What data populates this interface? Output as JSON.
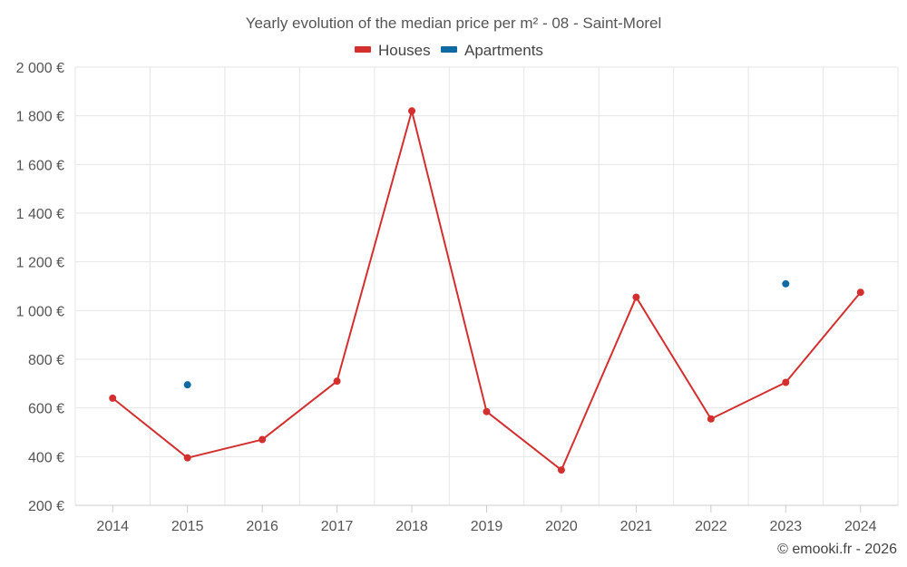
{
  "chart_data": {
    "type": "line",
    "title": "Yearly evolution of the median price per m² - 08 - Saint-Morel",
    "xlabel": "",
    "ylabel": "",
    "categories": [
      "2014",
      "2015",
      "2016",
      "2017",
      "2018",
      "2019",
      "2020",
      "2021",
      "2022",
      "2023",
      "2024"
    ],
    "ylim": [
      200,
      2000
    ],
    "yticks": [
      200,
      400,
      600,
      800,
      1000,
      1200,
      1400,
      1600,
      1800,
      2000
    ],
    "ytick_labels": [
      "200 €",
      "400 €",
      "600 €",
      "800 €",
      "1 000 €",
      "1 200 €",
      "1 400 €",
      "1 600 €",
      "1 800 €",
      "2 000 €"
    ],
    "grid": true,
    "legend_position": "top-center",
    "series": [
      {
        "name": "Houses",
        "color": "#d32f2f",
        "values": [
          640,
          395,
          470,
          710,
          1820,
          585,
          345,
          1055,
          555,
          705,
          1075
        ]
      },
      {
        "name": "Apartments",
        "color": "#0f6aa3",
        "values": [
          null,
          695,
          null,
          null,
          null,
          null,
          null,
          null,
          null,
          1110,
          null
        ]
      }
    ]
  },
  "credit": "© emooki.fr - 2026"
}
